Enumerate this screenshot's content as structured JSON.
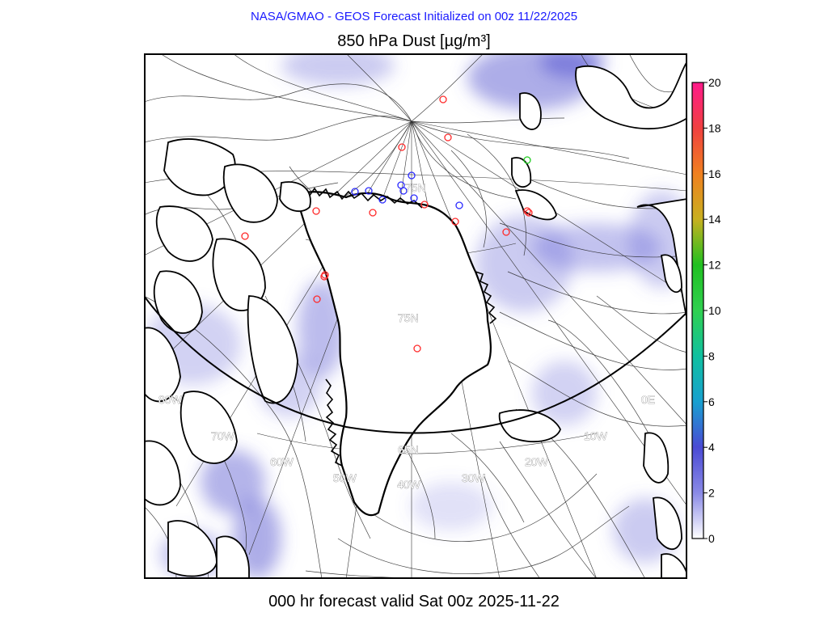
{
  "header": {
    "top_line": "NASA/GMAO - GEOS Forecast Initialized on 00z 11/22/2025",
    "top_color": "#1a1aff",
    "title": "850 hPa Dust [µg/m³]"
  },
  "footer": {
    "text": "000 hr forecast valid Sat 00z 2025-11-22"
  },
  "map": {
    "region": "Greenland / North Atlantic, polar stereographic",
    "background_color": "#ffffff",
    "dust_shade_color": "#6a6ad6",
    "land_interior_color": "#ffffff",
    "grid_labels": [
      {
        "text": "75N",
        "name": "lat-label-75n"
      },
      {
        "text": "75N",
        "name": "lat-label-75n-center"
      },
      {
        "text": "65N",
        "name": "lat-label-65n"
      },
      {
        "text": "80W",
        "name": "lon-label-80w"
      },
      {
        "text": "70W",
        "name": "lon-label-70w"
      },
      {
        "text": "60W",
        "name": "lon-label-60w"
      },
      {
        "text": "50W",
        "name": "lon-label-50w"
      },
      {
        "text": "40W",
        "name": "lon-label-40w"
      },
      {
        "text": "30W",
        "name": "lon-label-30w"
      },
      {
        "text": "20W",
        "name": "lon-label-20w"
      },
      {
        "text": "10W",
        "name": "lon-label-10w"
      },
      {
        "text": "0E",
        "name": "lon-label-0e"
      }
    ],
    "markers": [
      {
        "color": "#ff2a2a",
        "count": 17
      },
      {
        "color": "#2a2aff",
        "count": 10
      },
      {
        "color": "#22cc22",
        "count": 1
      }
    ]
  },
  "colorbar": {
    "ticks": [
      "0",
      "2",
      "4",
      "6",
      "8",
      "10",
      "12",
      "14",
      "16",
      "18",
      "20"
    ],
    "stops": [
      "#ffffff",
      "#8a8ae6",
      "#4a4ad4",
      "#18a0d0",
      "#10c0a0",
      "#30d050",
      "#20c020",
      "#c8b020",
      "#f08020",
      "#f04040",
      "#ff1a8a"
    ]
  }
}
